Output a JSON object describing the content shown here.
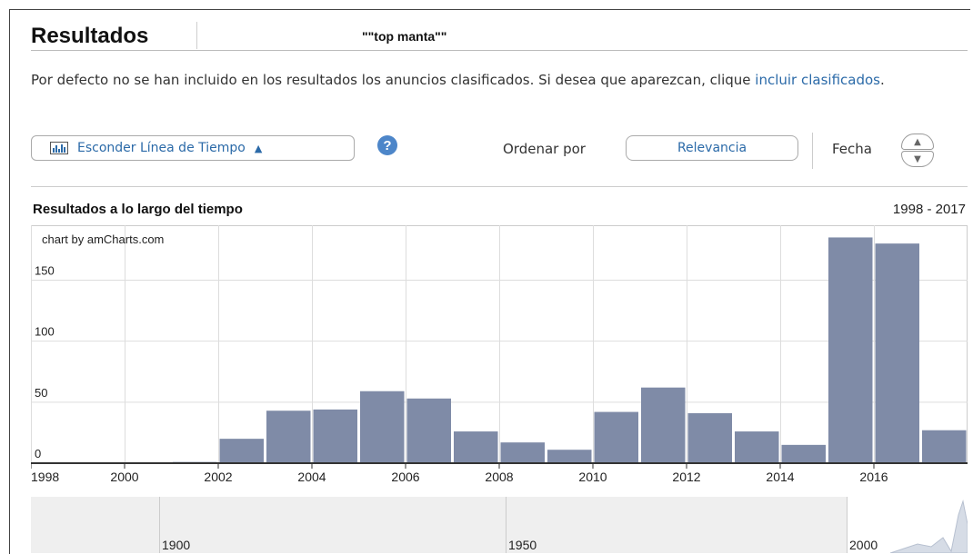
{
  "header": {
    "title": "Resultados",
    "query": "\"\"top manta\"\""
  },
  "notice": {
    "text": "Por defecto no se han incluido en los resultados los anuncios clasificados. Si desea que aparezcan, clique ",
    "link": "incluir clasificados",
    "end": "."
  },
  "toolbar": {
    "timeline_button": "Esconder Línea de Tiempo",
    "timeline_caret": "▲",
    "help": "?",
    "order_label": "Ordenar por",
    "relevance_button": "Relevancia",
    "date_label": "Fecha",
    "sort_up": "▲",
    "sort_down": "▼"
  },
  "chart_section": {
    "title": "Resultados a lo largo del tiempo",
    "range": "1998 - 2017"
  },
  "chart_data": {
    "type": "bar",
    "credit": "chart by amCharts.com",
    "categories": [
      "1998",
      "1999",
      "2000",
      "2001",
      "2002",
      "2003",
      "2004",
      "2005",
      "2006",
      "2007",
      "2008",
      "2009",
      "2010",
      "2011",
      "2012",
      "2013",
      "2014",
      "2015",
      "2016",
      "2017"
    ],
    "values": [
      0,
      0,
      0,
      1,
      20,
      43,
      44,
      59,
      53,
      26,
      17,
      11,
      42,
      62,
      41,
      26,
      15,
      185,
      180,
      27
    ],
    "x_tick_labels": [
      "1998",
      "2000",
      "2002",
      "2004",
      "2006",
      "2008",
      "2010",
      "2012",
      "2014",
      "2016"
    ],
    "y_ticks": [
      0,
      50,
      100,
      150
    ],
    "ylim": [
      0,
      195
    ],
    "bar_color": "#7f8ba7",
    "grid": true
  },
  "navigator": {
    "labels": [
      "1900",
      "1950",
      "2000"
    ]
  }
}
